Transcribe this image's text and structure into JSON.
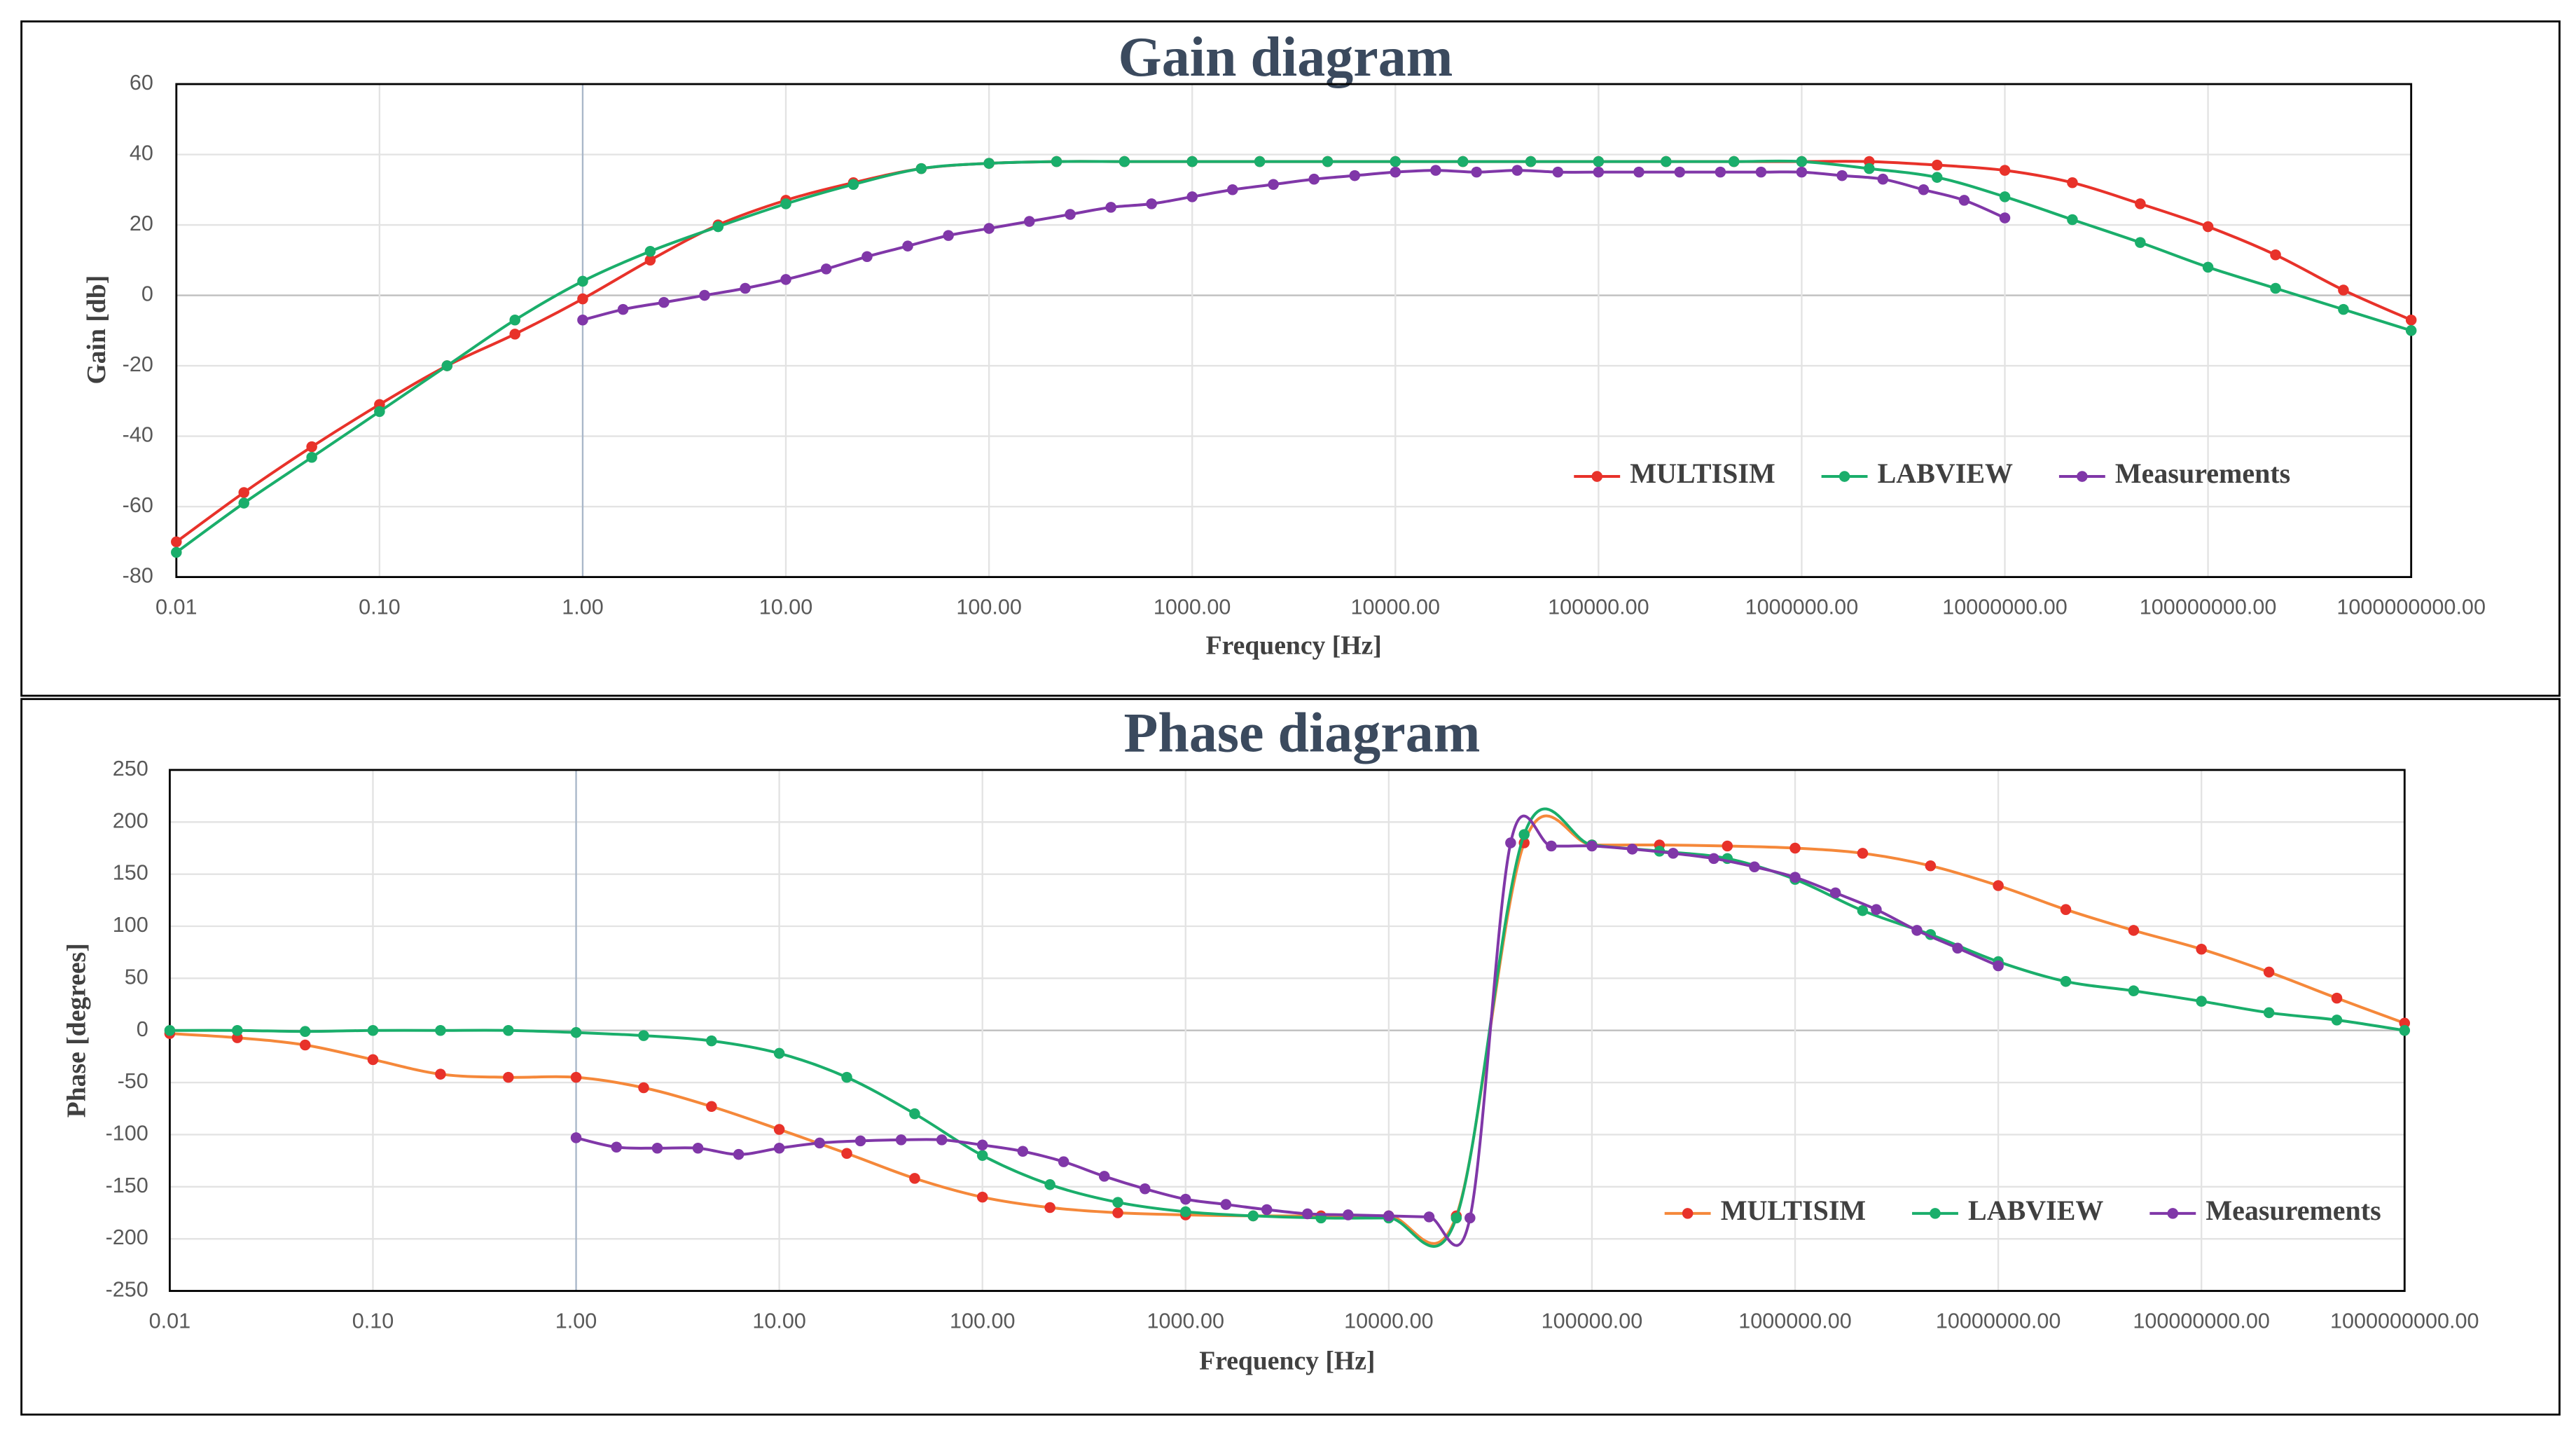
{
  "chart_data": [
    {
      "type": "line",
      "title": "Gain diagram",
      "x_label": "Frequency [Hz]",
      "y_label": "Gain [db]",
      "xscale": "log",
      "grid": true,
      "legend": "lower right",
      "x": [
        0.01,
        0.0215,
        0.0464,
        0.1,
        0.215,
        0.464,
        1,
        2.15,
        4.64,
        10,
        21.5,
        46.4,
        100,
        215,
        464,
        1000,
        2150,
        4640,
        10000,
        21500,
        46400,
        100000,
        215000,
        464000,
        1000000,
        2150000,
        4640000,
        10000000,
        21500000,
        46400000,
        100000000,
        215000000,
        464000000,
        1000000000
      ],
      "xlim": [
        0.01,
        1000000000
      ],
      "xticks": [
        0.01,
        {
          "value": 0.1,
          "label": "0.10"
        },
        {
          "value": 1,
          "label": "1.00"
        },
        {
          "value": 10,
          "label": "10.00"
        },
        {
          "value": 100,
          "label": "100.00"
        },
        {
          "value": 1000,
          "label": "1000.00"
        },
        {
          "value": 10000,
          "label": "10000.00"
        },
        {
          "value": 100000,
          "label": "100000.00"
        },
        {
          "value": 1000000,
          "label": "1000000.00"
        },
        {
          "value": 10000000,
          "label": "10000000.00"
        },
        {
          "value": 100000000,
          "label": "100000000.00"
        },
        {
          "value": 1000000000,
          "label": "1000000000.00"
        }
      ],
      "ylim": [
        -80,
        60
      ],
      "yticks": [
        -80,
        -60,
        -40,
        -20,
        0,
        20,
        40,
        60
      ],
      "series": [
        {
          "name": "MULTISIM",
          "color": "#e8322a",
          "marker_color": "#e8322a",
          "values": [
            -70,
            -56,
            -43,
            -31,
            -20,
            -11,
            -1,
            10,
            20,
            27,
            32,
            36,
            37.5,
            38,
            38,
            38,
            38,
            38,
            38,
            38,
            38,
            38,
            38,
            38,
            38,
            38,
            37,
            35.5,
            32,
            26,
            19.5,
            11.5,
            1.5,
            -7
          ]
        },
        {
          "name": "LABVIEW",
          "color": "#1aae6b",
          "marker_color": "#1aae6b",
          "values": [
            -73,
            -59,
            -46,
            -33,
            -20,
            -7,
            4,
            12.5,
            19.5,
            26,
            31.5,
            36,
            37.5,
            38,
            38,
            38,
            38,
            38,
            38,
            38,
            38,
            38,
            38,
            38,
            38,
            36,
            33.5,
            28,
            21.5,
            15,
            8,
            2,
            -4,
            -10
          ]
        },
        {
          "name": "Measurements",
          "color": "#8037a8",
          "marker_color": "#8037a8",
          "x": [
            1,
            1.58,
            2.51,
            3.98,
            6.31,
            10,
            15.8,
            25.1,
            39.8,
            63.1,
            100,
            158,
            251,
            398,
            631,
            1000,
            1580,
            2510,
            3980,
            6310,
            10000,
            15800,
            25100,
            39800,
            63100,
            100000,
            158000,
            251000,
            398000,
            631000,
            1000000,
            1580000,
            2510000,
            3980000,
            6310000,
            10000000
          ],
          "values": [
            -7,
            -4,
            -2,
            0,
            2,
            4.5,
            7.5,
            11,
            14,
            17,
            19,
            21,
            23,
            25,
            26,
            28,
            30,
            31.5,
            33,
            34,
            35,
            35.5,
            35,
            35.5,
            35,
            35,
            35,
            35,
            35,
            35,
            35,
            34,
            33,
            30,
            27,
            22
          ]
        }
      ]
    },
    {
      "type": "line",
      "title": "Phase diagram",
      "x_label": "Frequency [Hz]",
      "y_label": "Phase [degrees]",
      "xscale": "log",
      "grid": true,
      "legend": "lower right",
      "x": [
        0.01,
        0.0215,
        0.0464,
        0.1,
        0.215,
        0.464,
        1,
        2.15,
        4.64,
        10,
        21.5,
        46.4,
        100,
        215,
        464,
        1000,
        2150,
        4640,
        10000,
        21500,
        46400,
        100000,
        215000,
        464000,
        1000000,
        2150000,
        4640000,
        10000000,
        21500000,
        46400000,
        100000000,
        215000000,
        464000000,
        1000000000
      ],
      "xlim": [
        0.01,
        1000000000
      ],
      "xticks": [
        0.01,
        {
          "value": 0.1,
          "label": "0.10"
        },
        {
          "value": 1,
          "label": "1.00"
        },
        {
          "value": 10,
          "label": "10.00"
        },
        {
          "value": 100,
          "label": "100.00"
        },
        {
          "value": 1000,
          "label": "1000.00"
        },
        {
          "value": 10000,
          "label": "10000.00"
        },
        {
          "value": 100000,
          "label": "100000.00"
        },
        {
          "value": 1000000,
          "label": "1000000.00"
        },
        {
          "value": 10000000,
          "label": "10000000.00"
        },
        {
          "value": 100000000,
          "label": "100000000.00"
        },
        {
          "value": 1000000000,
          "label": "1000000000.00"
        }
      ],
      "ylim": [
        -250,
        250
      ],
      "yticks": [
        -250,
        -200,
        -150,
        -100,
        -50,
        0,
        50,
        100,
        150,
        200,
        250
      ],
      "series": [
        {
          "name": "MULTISIM",
          "color": "#f5883a",
          "marker_color": "#e8322a",
          "values": [
            -3,
            -7,
            -14,
            -28,
            -42,
            -45,
            -45,
            -55,
            -73,
            -95,
            -118,
            -142,
            -160,
            -170,
            -175,
            -177,
            -178,
            -178,
            -178,
            -178,
            180,
            178,
            178,
            177,
            175,
            170,
            158,
            139,
            116,
            96,
            78,
            56,
            31,
            7
          ]
        },
        {
          "name": "LABVIEW",
          "color": "#1aae6b",
          "marker_color": "#1aae6b",
          "values": [
            0,
            0,
            -1,
            0,
            0,
            0,
            -2,
            -5,
            -10,
            -22,
            -45,
            -80,
            -120,
            -148,
            -165,
            -174,
            -178,
            -180,
            -180,
            -180,
            188,
            178,
            172,
            165,
            145,
            115,
            92,
            66,
            47,
            38,
            28,
            17,
            10,
            0
          ]
        },
        {
          "name": "Measurements",
          "color": "#8037a8",
          "marker_color": "#8037a8",
          "x": [
            1,
            1.58,
            2.51,
            3.98,
            6.31,
            10,
            15.8,
            25.1,
            39.8,
            63.1,
            100,
            158,
            251,
            398,
            631,
            1000,
            1580,
            2510,
            3980,
            6310,
            10000,
            15800,
            25100,
            39800,
            63100,
            100000,
            158000,
            251000,
            398000,
            631000,
            1000000,
            1580000,
            2510000,
            3980000,
            6310000,
            10000000
          ],
          "values": [
            -103,
            -112,
            -113,
            -113,
            -119,
            -113,
            -108,
            -106,
            -105,
            -105,
            -110,
            -116,
            -126,
            -140,
            -152,
            -162,
            -167,
            -172,
            -176,
            -177,
            -178,
            -179,
            -180,
            180,
            177,
            177,
            174,
            170,
            165,
            157,
            147,
            132,
            116,
            96,
            79,
            62
          ]
        }
      ]
    }
  ]
}
